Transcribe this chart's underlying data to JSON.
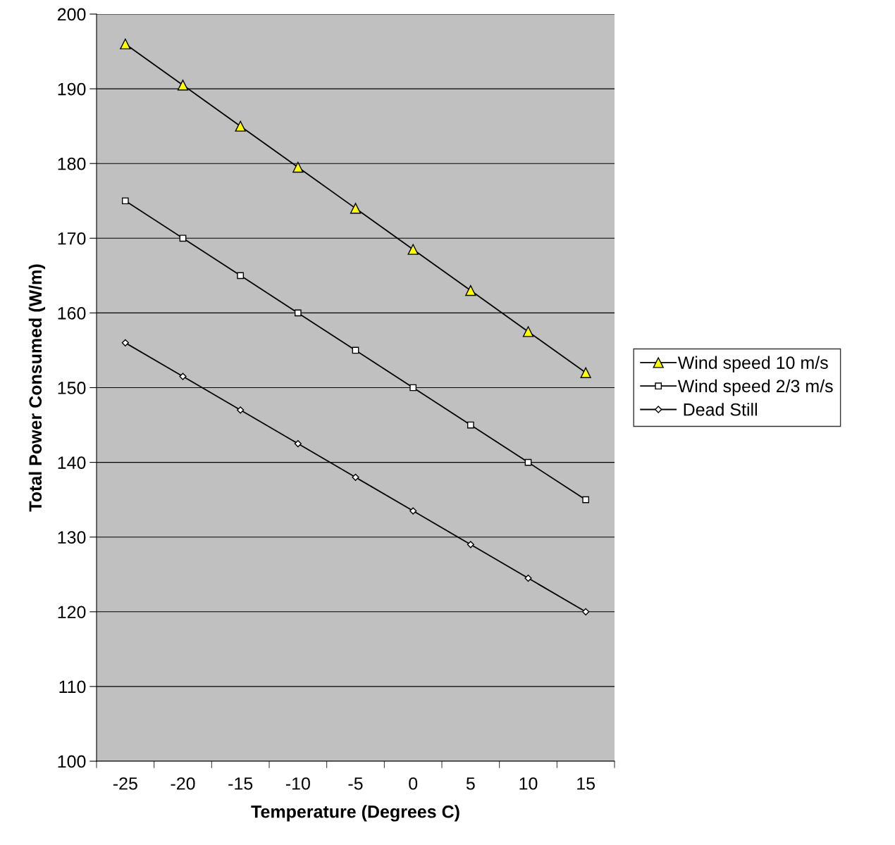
{
  "chart_data": {
    "type": "line",
    "xlabel": "Temperature (Degrees C)",
    "ylabel": "Total Power Consumed (W/m)",
    "categories": [
      "-25",
      "-20",
      "-15",
      "-10",
      "-5",
      "0",
      "5",
      "10",
      "15"
    ],
    "series": [
      {
        "name": "Wind speed 10 m/s",
        "color": "#000000",
        "marker": "triangle",
        "values": [
          196,
          190.5,
          185,
          179.5,
          174,
          168.5,
          163,
          157.5,
          152
        ]
      },
      {
        "name": "Wind speed 2/3 m/s",
        "color": "#000000",
        "marker": "square",
        "values": [
          175,
          170,
          165,
          160,
          155,
          150,
          145,
          140,
          135
        ]
      },
      {
        "name": " Dead Still",
        "color": "#000000",
        "marker": "diamond",
        "values": [
          156,
          151.5,
          147,
          142.5,
          138,
          133.5,
          129,
          124.5,
          120
        ]
      }
    ],
    "ylim": [
      100,
      200
    ],
    "yticks": [
      100,
      110,
      120,
      130,
      140,
      150,
      160,
      170,
      180,
      190,
      200
    ],
    "grid": "y",
    "legend": "right",
    "line_style": "solid"
  }
}
